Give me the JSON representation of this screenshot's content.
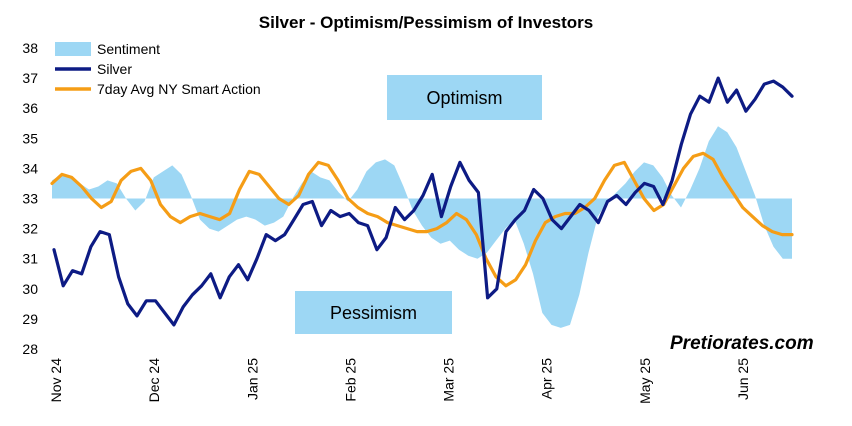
{
  "chart_data": {
    "type": "line",
    "title": "Silver - Optimism/Pessimism of Investors",
    "ylim": [
      28,
      38
    ],
    "yticks": [
      "38",
      "37",
      "36",
      "35",
      "34",
      "33",
      "32",
      "31",
      "30",
      "29",
      "28"
    ],
    "xlabels": [
      "Nov 24",
      "Dec 24",
      "Jan 25",
      "Feb 25",
      "Mar 25",
      "Apr 25",
      "May 25",
      "Jun 25"
    ],
    "baseline": 33,
    "grid": false,
    "legend_position": "top-left",
    "annotations": {
      "optimism": "Optimism",
      "pessimism": "Pessimism"
    },
    "watermark": "Pretiorates.com",
    "colors": {
      "sentiment": "#9dd7f4",
      "silver": "#0d1b84",
      "smart": "#f59d16",
      "annotation_box": "#9dd7f4"
    },
    "series": [
      {
        "name": "Sentiment",
        "type": "area",
        "values": [
          33.6,
          33.8,
          33.7,
          33.5,
          33.3,
          33.4,
          33.6,
          33.5,
          33.0,
          32.6,
          32.9,
          33.7,
          33.9,
          34.1,
          33.8,
          33.1,
          32.3,
          32.0,
          31.9,
          32.1,
          32.3,
          32.4,
          32.3,
          32.1,
          32.2,
          32.4,
          33.0,
          33.5,
          33.9,
          33.7,
          33.6,
          33.2,
          32.9,
          33.3,
          33.9,
          34.2,
          34.3,
          34.1,
          33.4,
          32.6,
          32.1,
          31.7,
          31.5,
          31.6,
          31.3,
          31.1,
          31.0,
          31.2,
          31.6,
          32.0,
          32.3,
          31.5,
          30.5,
          29.2,
          28.8,
          28.7,
          28.8,
          29.8,
          31.2,
          32.4,
          32.9,
          33.2,
          33.5,
          33.9,
          34.2,
          34.1,
          33.7,
          33.1,
          32.7,
          33.3,
          34.0,
          34.9,
          35.4,
          35.2,
          34.7,
          33.9,
          33.1,
          32.1,
          31.4,
          31.0,
          31.0
        ],
        "representative": true
      },
      {
        "name": "Silver",
        "type": "line",
        "values": [
          31.3,
          30.1,
          30.6,
          30.5,
          31.4,
          31.9,
          31.8,
          30.4,
          29.5,
          29.1,
          29.6,
          29.6,
          29.2,
          28.8,
          29.4,
          29.8,
          30.1,
          30.5,
          29.7,
          30.4,
          30.8,
          30.3,
          31.0,
          31.8,
          31.6,
          31.8,
          32.3,
          32.8,
          32.9,
          32.1,
          32.6,
          32.4,
          32.5,
          32.2,
          32.1,
          31.3,
          31.7,
          32.7,
          32.3,
          32.6,
          33.1,
          33.8,
          32.4,
          33.4,
          34.2,
          33.6,
          33.2,
          29.7,
          30.0,
          31.9,
          32.3,
          32.6,
          33.3,
          33.0,
          32.3,
          32.0,
          32.4,
          32.8,
          32.6,
          32.2,
          32.9,
          33.1,
          32.8,
          33.2,
          33.5,
          33.4,
          32.8,
          33.6,
          34.8,
          35.8,
          36.4,
          36.2,
          37.0,
          36.2,
          36.6,
          35.9,
          36.3,
          36.8,
          36.9,
          36.7,
          36.4
        ],
        "representative": true
      },
      {
        "name": "7day Avg NY Smart Action",
        "type": "line",
        "values": [
          33.5,
          33.8,
          33.7,
          33.4,
          33.0,
          32.7,
          32.9,
          33.6,
          33.9,
          34.0,
          33.6,
          32.8,
          32.4,
          32.2,
          32.4,
          32.5,
          32.4,
          32.3,
          32.5,
          33.3,
          33.9,
          33.8,
          33.4,
          33.0,
          32.8,
          33.1,
          33.8,
          34.2,
          34.1,
          33.6,
          33.0,
          32.7,
          32.5,
          32.4,
          32.2,
          32.1,
          32.0,
          31.9,
          31.9,
          32.0,
          32.2,
          32.5,
          32.3,
          31.8,
          31.0,
          30.4,
          30.1,
          30.3,
          30.8,
          31.6,
          32.2,
          32.4,
          32.5,
          32.5,
          32.7,
          33.0,
          33.6,
          34.1,
          34.2,
          33.6,
          33.0,
          32.6,
          32.8,
          33.4,
          34.0,
          34.4,
          34.5,
          34.3,
          33.7,
          33.2,
          32.7,
          32.4,
          32.1,
          31.9,
          31.8,
          31.8
        ],
        "representative": true
      }
    ]
  }
}
